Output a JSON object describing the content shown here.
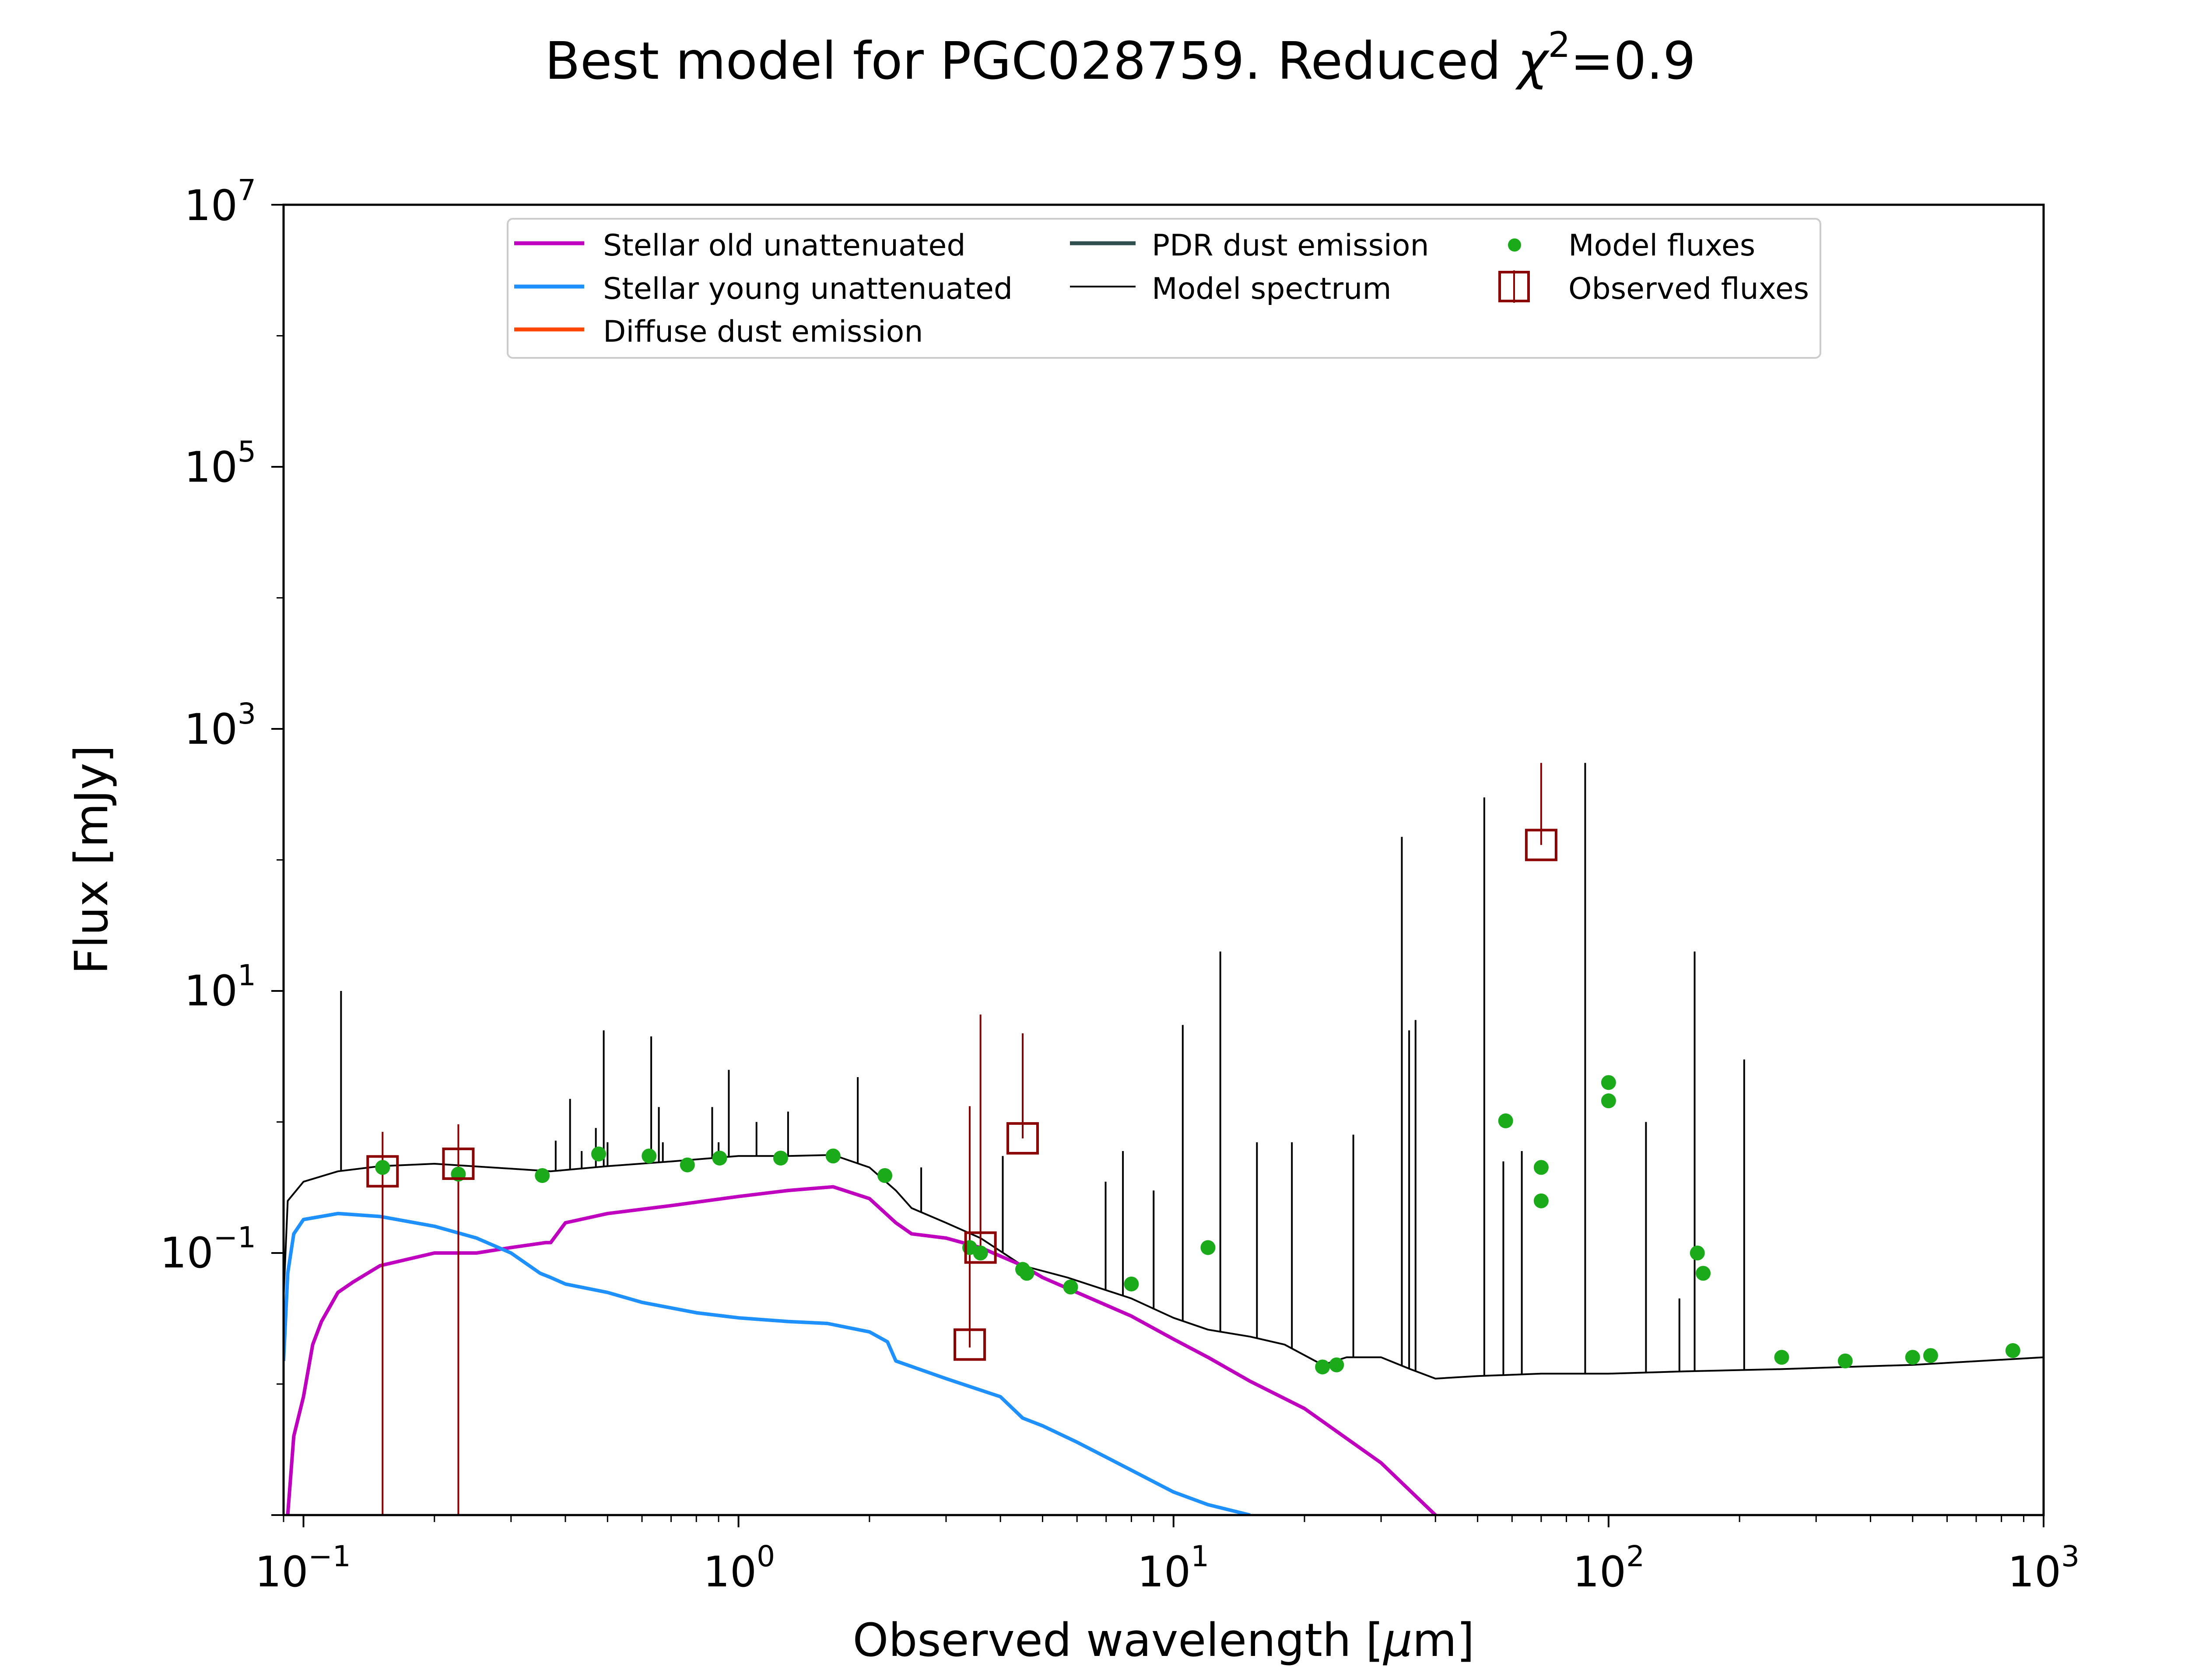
{
  "chart_data": {
    "type": "line",
    "title": "Best model for PGC028759. Reduced χ²=0.9",
    "title_parts": {
      "prefix": "Best model for PGC028759. Reduced ",
      "chi": "χ",
      "sup": "2",
      "suffix": "=0.9"
    },
    "xlabel": "Observed wavelength [μm]",
    "xlabel_parts": {
      "prefix": "Observed wavelength [",
      "mu": "μ",
      "suffix": "m]"
    },
    "ylabel": "Flux [mJy]",
    "xscale": "log",
    "yscale": "log",
    "xlim": [
      0.09,
      1000
    ],
    "ylim": [
      0.001,
      10000000
    ],
    "x_ticks": [
      {
        "base": "10",
        "exp": "−1",
        "value": 0.1
      },
      {
        "base": "10",
        "exp": "0",
        "value": 1
      },
      {
        "base": "10",
        "exp": "1",
        "value": 10
      },
      {
        "base": "10",
        "exp": "2",
        "value": 100
      },
      {
        "base": "10",
        "exp": "3",
        "value": 1000
      }
    ],
    "y_ticks": [
      {
        "base": "10",
        "exp": "−1",
        "value": 0.1
      },
      {
        "base": "10",
        "exp": "1",
        "value": 10
      },
      {
        "base": "10",
        "exp": "3",
        "value": 1000
      },
      {
        "base": "10",
        "exp": "5",
        "value": 100000
      },
      {
        "base": "10",
        "exp": "7",
        "value": 10000000
      }
    ],
    "legend": {
      "placement": "top-center",
      "entries": [
        {
          "label": "Stellar old unattenuated",
          "color": "#bf00bf",
          "marker": "line"
        },
        {
          "label": "Stellar young unattenuated",
          "color": "#1e90ff",
          "marker": "line"
        },
        {
          "label": "Diffuse dust emission",
          "color": "#ff4500",
          "marker": "line"
        },
        {
          "label": "PDR dust emission",
          "color": "#2f4f4f",
          "marker": "line"
        },
        {
          "label": "Model spectrum",
          "color": "#000000",
          "marker": "thin-line"
        },
        {
          "label": "Model fluxes",
          "color": "#1aaa1a",
          "marker": "dot"
        },
        {
          "label": "Observed fluxes",
          "color": "#8b0000",
          "marker": "square"
        }
      ]
    },
    "series": [
      {
        "name": "Model spectrum",
        "color": "#000000",
        "points": [
          [
            0.09,
            0.045
          ],
          [
            0.092,
            0.25
          ],
          [
            0.1,
            0.35
          ],
          [
            0.12,
            0.42
          ],
          [
            0.15,
            0.46
          ],
          [
            0.2,
            0.48
          ],
          [
            0.3,
            0.44
          ],
          [
            0.37,
            0.42
          ],
          [
            0.4,
            0.43
          ],
          [
            0.5,
            0.46
          ],
          [
            0.7,
            0.5
          ],
          [
            1.0,
            0.55
          ],
          [
            1.3,
            0.55
          ],
          [
            1.65,
            0.56
          ],
          [
            2.0,
            0.45
          ],
          [
            2.3,
            0.3
          ],
          [
            2.5,
            0.22
          ],
          [
            3.0,
            0.17
          ],
          [
            3.6,
            0.13
          ],
          [
            4.5,
            0.08
          ],
          [
            5.7,
            0.065
          ],
          [
            8.0,
            0.045
          ],
          [
            10,
            0.032
          ],
          [
            12,
            0.026
          ],
          [
            15,
            0.023
          ],
          [
            18,
            0.02
          ],
          [
            22,
            0.014
          ],
          [
            25,
            0.016
          ],
          [
            30,
            0.016
          ],
          [
            35,
            0.013
          ],
          [
            40,
            0.011
          ],
          [
            50,
            0.0115
          ],
          [
            70,
            0.012
          ],
          [
            100,
            0.012
          ],
          [
            150,
            0.0125
          ],
          [
            250,
            0.013
          ],
          [
            350,
            0.0135
          ],
          [
            500,
            0.014
          ],
          [
            850,
            0.0155
          ],
          [
            1000,
            0.016
          ]
        ],
        "lines": [
          [
            0.122,
            10
          ],
          [
            0.38,
            0.72
          ],
          [
            0.39,
            0.42
          ],
          [
            0.41,
            1.5
          ],
          [
            0.436,
            0.6
          ],
          [
            0.47,
            0.9
          ],
          [
            0.49,
            5
          ],
          [
            0.5,
            0.7
          ],
          [
            0.63,
            4.5
          ],
          [
            0.656,
            1.3
          ],
          [
            0.67,
            0.7
          ],
          [
            0.73,
            0.5
          ],
          [
            0.87,
            1.3
          ],
          [
            0.9,
            0.7
          ],
          [
            0.95,
            2.5
          ],
          [
            1.1,
            1.0
          ],
          [
            1.3,
            1.2
          ],
          [
            1.88,
            2.2
          ],
          [
            2.63,
            0.45
          ],
          [
            4.05,
            0.55
          ],
          [
            6.98,
            0.35
          ],
          [
            7.65,
            0.6
          ],
          [
            9.0,
            0.3
          ],
          [
            10.5,
            5.5
          ],
          [
            12.81,
            20
          ],
          [
            15.55,
            0.7
          ],
          [
            18.71,
            0.7
          ],
          [
            25.9,
            0.8
          ],
          [
            33.48,
            150
          ],
          [
            34.8,
            5
          ],
          [
            36.0,
            6
          ],
          [
            51.8,
            300
          ],
          [
            57.3,
            0.5
          ],
          [
            63.18,
            0.6
          ],
          [
            88.36,
            550
          ],
          [
            121.9,
            1.0
          ],
          [
            145.5,
            0.045
          ],
          [
            157.7,
            20
          ],
          [
            205,
            3
          ]
        ]
      },
      {
        "name": "Stellar old unattenuated",
        "color": "#bf00bf",
        "points": [
          [
            0.092,
            0.001
          ],
          [
            0.095,
            0.004
          ],
          [
            0.1,
            0.008
          ],
          [
            0.105,
            0.02
          ],
          [
            0.11,
            0.03
          ],
          [
            0.12,
            0.05
          ],
          [
            0.13,
            0.06
          ],
          [
            0.15,
            0.08
          ],
          [
            0.2,
            0.1
          ],
          [
            0.25,
            0.1
          ],
          [
            0.3,
            0.11
          ],
          [
            0.36,
            0.12
          ],
          [
            0.37,
            0.12
          ],
          [
            0.4,
            0.17
          ],
          [
            0.5,
            0.2
          ],
          [
            0.7,
            0.23
          ],
          [
            1.0,
            0.27
          ],
          [
            1.3,
            0.3
          ],
          [
            1.65,
            0.32
          ],
          [
            2.0,
            0.26
          ],
          [
            2.3,
            0.17
          ],
          [
            2.5,
            0.14
          ],
          [
            3.0,
            0.13
          ],
          [
            3.6,
            0.11
          ],
          [
            4.5,
            0.08
          ],
          [
            5.0,
            0.065
          ],
          [
            6.0,
            0.05
          ],
          [
            8.0,
            0.033
          ],
          [
            10,
            0.022
          ],
          [
            12,
            0.016
          ],
          [
            15,
            0.0105
          ],
          [
            20,
            0.0065
          ],
          [
            30,
            0.0025
          ],
          [
            40,
            0.001
          ]
        ]
      },
      {
        "name": "Stellar young unattenuated",
        "color": "#1e90ff",
        "points": [
          [
            0.09,
            0.015
          ],
          [
            0.092,
            0.07
          ],
          [
            0.095,
            0.14
          ],
          [
            0.1,
            0.18
          ],
          [
            0.12,
            0.2
          ],
          [
            0.15,
            0.19
          ],
          [
            0.2,
            0.16
          ],
          [
            0.25,
            0.13
          ],
          [
            0.3,
            0.1
          ],
          [
            0.35,
            0.07
          ],
          [
            0.37,
            0.065
          ],
          [
            0.4,
            0.058
          ],
          [
            0.5,
            0.05
          ],
          [
            0.6,
            0.042
          ],
          [
            0.8,
            0.035
          ],
          [
            1.0,
            0.032
          ],
          [
            1.3,
            0.03
          ],
          [
            1.6,
            0.029
          ],
          [
            2.0,
            0.025
          ],
          [
            2.2,
            0.021
          ],
          [
            2.3,
            0.015
          ],
          [
            3.0,
            0.011
          ],
          [
            4.0,
            0.008
          ],
          [
            4.5,
            0.0055
          ],
          [
            5.0,
            0.0048
          ],
          [
            6.0,
            0.0036
          ],
          [
            8.0,
            0.0022
          ],
          [
            10,
            0.0015
          ],
          [
            12,
            0.0012
          ],
          [
            15,
            0.001
          ]
        ]
      }
    ],
    "model_fluxes": [
      [
        0.152,
        0.45
      ],
      [
        0.227,
        0.4
      ],
      [
        0.354,
        0.39
      ],
      [
        0.477,
        0.57
      ],
      [
        0.623,
        0.55
      ],
      [
        0.763,
        0.47
      ],
      [
        0.905,
        0.53
      ],
      [
        1.25,
        0.53
      ],
      [
        1.65,
        0.55
      ],
      [
        2.17,
        0.39
      ],
      [
        3.4,
        0.11
      ],
      [
        3.6,
        0.1
      ],
      [
        4.5,
        0.075
      ],
      [
        4.6,
        0.07
      ],
      [
        5.8,
        0.055
      ],
      [
        8.0,
        0.058
      ],
      [
        12,
        0.11
      ],
      [
        22,
        0.0135
      ],
      [
        23.7,
        0.014
      ],
      [
        58,
        1.02
      ],
      [
        70,
        0.45
      ],
      [
        70,
        0.25
      ],
      [
        100,
        1.45
      ],
      [
        100,
        2.0
      ],
      [
        160,
        0.1
      ],
      [
        165,
        0.07
      ],
      [
        250,
        0.016
      ],
      [
        350,
        0.015
      ],
      [
        500,
        0.016
      ],
      [
        550,
        0.0165
      ],
      [
        850,
        0.018
      ]
    ],
    "observed_fluxes": [
      {
        "x": 0.152,
        "y": 0.42,
        "yerr": [
          0.42,
          0.42
        ]
      },
      {
        "x": 0.227,
        "y": 0.48,
        "yerr": [
          0.48,
          0.48
        ]
      },
      {
        "x": 3.4,
        "y": 0.02,
        "yerr": [
          0.001,
          1.3
        ]
      },
      {
        "x": 3.6,
        "y": 0.11,
        "yerr": [
          0.001,
          6.5
        ]
      },
      {
        "x": 4.5,
        "y": 0.75,
        "yerr": [
          0.001,
          4.0
        ]
      },
      {
        "x": 70,
        "y": 130,
        "yerr": [
          0.001,
          420
        ]
      }
    ]
  }
}
